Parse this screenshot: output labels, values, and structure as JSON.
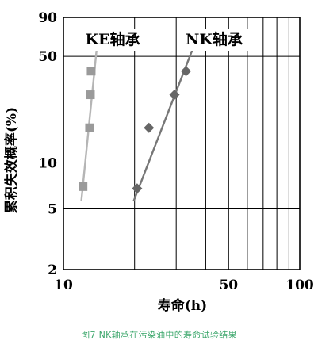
{
  "caption": "图7 NK轴承在污染油中的寿命试验结果",
  "chart_data": {
    "type": "scatter",
    "xscale": "log",
    "yscale": "log",
    "xlim": [
      10,
      100
    ],
    "ylim": [
      2,
      90
    ],
    "xlabel": "寿命(h)",
    "ylabel": "累积失效概率(%)",
    "x_ticks": [
      10,
      50,
      100
    ],
    "y_ticks": [
      2,
      5,
      10,
      50,
      90
    ],
    "x_grid": [
      10,
      20,
      30,
      40,
      50,
      60,
      70,
      80,
      90,
      100
    ],
    "y_grid": [
      5,
      10,
      50
    ],
    "grid": true,
    "series": [
      {
        "name": "KE轴承",
        "marker": "square",
        "color": "#9a9a9a",
        "line_color": "#b5b5b5",
        "points": [
          [
            12.1,
            7
          ],
          [
            12.9,
            17
          ],
          [
            13.0,
            28
          ],
          [
            13.1,
            40
          ],
          [
            13.8,
            62
          ]
        ],
        "fit": [
          [
            11.9,
            5.6
          ],
          [
            14.0,
            68
          ]
        ]
      },
      {
        "name": "NK轴承",
        "marker": "diamond",
        "color": "#666666",
        "line_color": "#777777",
        "points": [
          [
            20.5,
            6.8
          ],
          [
            23.0,
            17
          ],
          [
            29.5,
            28
          ],
          [
            33.0,
            40
          ],
          [
            33.5,
            62
          ]
        ],
        "fit": [
          [
            19.8,
            5.6
          ],
          [
            37.0,
            68
          ]
        ]
      }
    ]
  }
}
